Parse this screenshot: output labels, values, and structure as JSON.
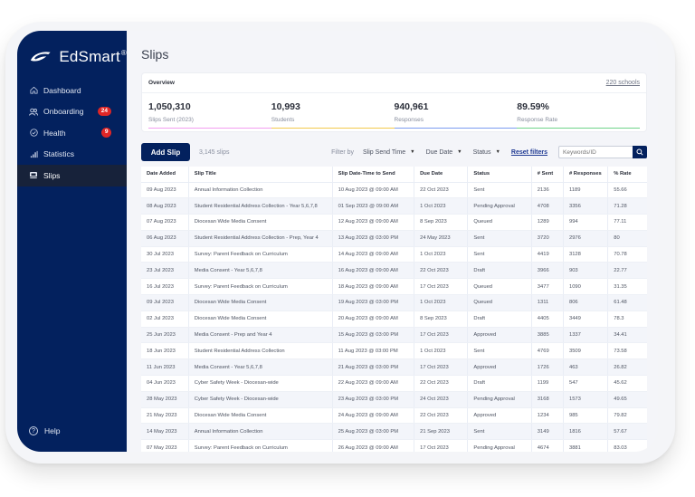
{
  "app": {
    "brand": "EdSmart",
    "brand_mark": "®"
  },
  "sidebar": {
    "items": [
      {
        "label": "Dashboard",
        "icon": "home-icon"
      },
      {
        "label": "Onboarding",
        "icon": "users-icon",
        "badge": "24"
      },
      {
        "label": "Health",
        "icon": "check-circle-icon",
        "badge": "9"
      },
      {
        "label": "Statistics",
        "icon": "bar-chart-icon"
      },
      {
        "label": "Slips",
        "icon": "inbox-icon",
        "active": true
      }
    ],
    "help": {
      "label": "Help",
      "icon": "help-circle-icon"
    }
  },
  "page": {
    "title": "Slips"
  },
  "overview": {
    "title": "Overview",
    "link": "220 schools",
    "stats": [
      {
        "value": "1,050,310",
        "label": "Slips Sent (2023)",
        "color": "#f29ef0"
      },
      {
        "value": "10,993",
        "label": "Students",
        "color": "#f2c94c"
      },
      {
        "value": "940,961",
        "label": "Responses",
        "color": "#7b9cf0"
      },
      {
        "value": "89.59%",
        "label": "Response Rate",
        "color": "#6fd48a"
      }
    ]
  },
  "toolbar": {
    "add_label": "Add Slip",
    "count": "3,145 slips",
    "filter_by": "Filter by",
    "filters": [
      "Slip Send Time",
      "Due Date",
      "Status"
    ],
    "reset": "Reset filters",
    "search_placeholder": "Keywords/ID"
  },
  "table": {
    "columns": [
      "Date Added",
      "Slip Title",
      "Slip Date-Time to Send",
      "Due Date",
      "Status",
      "# Sent",
      "# Responses",
      "% Rate"
    ],
    "rows": [
      [
        "09 Aug 2023",
        "Annual Information Collection",
        "10 Aug 2023 @ 09:00 AM",
        "22 Oct 2023",
        "Sent",
        "2136",
        "1189",
        "55.66"
      ],
      [
        "08 Aug 2023",
        "Student Residential Address Collection - Year 5,6,7,8",
        "01 Sep 2023 @ 09:00 AM",
        "1 Oct 2023",
        "Pending Approval",
        "4708",
        "3356",
        "71.28"
      ],
      [
        "07 Aug 2023",
        "Diocesan Wide Media Consent",
        "12 Aug 2023 @ 09:00 AM",
        "8 Sep 2023",
        "Queued",
        "1289",
        "994",
        "77.11"
      ],
      [
        "06 Aug 2023",
        "Student Residential Address Collection - Prep, Year 4",
        "13 Aug 2023 @ 03:00 PM",
        "24 May 2023",
        "Sent",
        "3720",
        "2976",
        "80"
      ],
      [
        "30 Jul 2023",
        "Survey: Parent Feedback on Curriculum",
        "14 Aug 2023 @ 09:00 AM",
        "1 Oct 2023",
        "Sent",
        "4419",
        "3128",
        "70.78"
      ],
      [
        "23 Jul 2023",
        "Media Consent - Year 5,6,7,8",
        "16 Aug 2023 @ 09:00 AM",
        "22 Oct 2023",
        "Draft",
        "3966",
        "903",
        "22.77"
      ],
      [
        "16 Jul 2023",
        "Survey: Parent Feedback on Curriculum",
        "18 Aug 2023 @ 09:00 AM",
        "17 Oct 2023",
        "Queued",
        "3477",
        "1090",
        "31.35"
      ],
      [
        "09 Jul 2023",
        "Diocesan Wide Media Consent",
        "19 Aug 2023 @ 03:00 PM",
        "1 Oct 2023",
        "Queued",
        "1311",
        "806",
        "61.48"
      ],
      [
        "02 Jul 2023",
        "Diocesan Wide Media Consent",
        "20 Aug 2023 @ 09:00 AM",
        "8 Sep 2023",
        "Draft",
        "4405",
        "3449",
        "78.3"
      ],
      [
        "25 Jun 2023",
        "Media Consent - Prep and Year 4",
        "15 Aug 2023 @ 03:00 PM",
        "17 Oct 2023",
        "Approved",
        "3885",
        "1337",
        "34.41"
      ],
      [
        "18 Jun 2023",
        "Student Residential Address Collection",
        "11 Aug 2023 @ 03:00 PM",
        "1 Oct 2023",
        "Sent",
        "4769",
        "3509",
        "73.58"
      ],
      [
        "11 Jun 2023",
        "Media Consent - Year 5,6,7,8",
        "21 Aug 2023 @ 03:00 PM",
        "17 Oct 2023",
        "Approved",
        "1726",
        "463",
        "26.82"
      ],
      [
        "04 Jun 2023",
        "Cyber Safety Week - Diocesan-wide",
        "22 Aug 2023 @ 09:00 AM",
        "22 Oct 2023",
        "Draft",
        "1199",
        "547",
        "45.62"
      ],
      [
        "28 May 2023",
        "Cyber Safety Week - Diocesan-wide",
        "23 Aug 2023 @ 03:00 PM",
        "24 Oct 2023",
        "Pending Approval",
        "3168",
        "1573",
        "49.65"
      ],
      [
        "21 May 2023",
        "Diocesan Wide Media Consent",
        "24 Aug 2023 @ 09:00 AM",
        "22 Oct 2023",
        "Approved",
        "1234",
        "985",
        "79.82"
      ],
      [
        "14 May 2023",
        "Annual Information Collection",
        "25 Aug 2023 @ 03:00 PM",
        "21 Sep 2023",
        "Sent",
        "3149",
        "1816",
        "57.67"
      ],
      [
        "07 May 2023",
        "Survey: Parent Feedback on Curriculum",
        "26 Aug 2023 @ 09:00 AM",
        "17 Oct 2023",
        "Pending Approval",
        "4674",
        "3881",
        "83.03"
      ]
    ]
  },
  "colors": {
    "brand_navy": "#03215e",
    "badge_red": "#e02626",
    "active_nav": "#17223a",
    "link_blue": "#1f3a93"
  }
}
